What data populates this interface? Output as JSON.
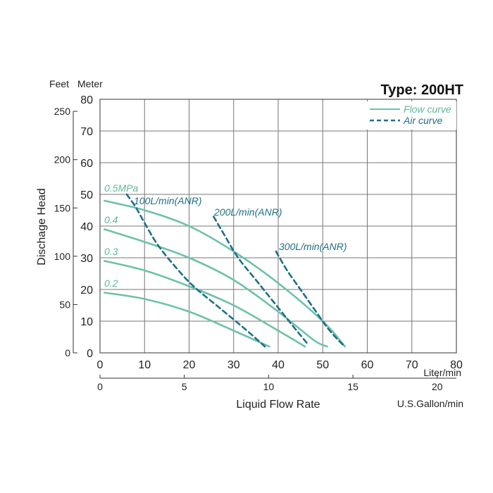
{
  "chart_data": {
    "type": "line",
    "title": "Type: 200HT",
    "ylabel": "Dischage Head",
    "y_units": {
      "left": "Feet",
      "right": "Meter"
    },
    "xlabel": "Liquid Flow Rate",
    "x_unit_primary": "Liter/min",
    "x_unit_secondary": "U.S.Gallon/min",
    "xlim": [
      0,
      80
    ],
    "ylim": [
      0,
      80
    ],
    "x_ticks": [
      "0",
      "10",
      "20",
      "30",
      "40",
      "50",
      "60",
      "70",
      "80"
    ],
    "y_ticks_meter": [
      "0",
      "10",
      "20",
      "30",
      "40",
      "50",
      "60",
      "70",
      "80"
    ],
    "y_ticks_feet": [
      "0",
      "50",
      "100",
      "150",
      "200",
      "250"
    ],
    "x_ticks_gallon": [
      "0",
      "5",
      "10",
      "15",
      "20"
    ],
    "grid": true,
    "legend_placement": "top-right",
    "legend": [
      {
        "label": "Flow curve",
        "style": "solid",
        "color": "#6cc2a8"
      },
      {
        "label": "Air curve",
        "style": "dashed",
        "color": "#1f6f8b"
      }
    ],
    "colors": {
      "flow": "#6cc2a8",
      "air": "#1f6f8b",
      "flow_label": "#5cb89c",
      "air_label": "#1f6f8b"
    },
    "series": [
      {
        "name": "0.5MPa",
        "kind": "flow",
        "x": [
          1,
          10,
          20,
          30,
          40,
          50,
          55
        ],
        "y": [
          48,
          45,
          40,
          32,
          22,
          10,
          2
        ]
      },
      {
        "name": "0.4",
        "kind": "flow",
        "x": [
          1,
          10,
          20,
          30,
          40,
          48,
          51
        ],
        "y": [
          39,
          35,
          30,
          23,
          13,
          4,
          2
        ]
      },
      {
        "name": "0.3",
        "kind": "flow",
        "x": [
          1,
          10,
          20,
          30,
          40,
          46
        ],
        "y": [
          29,
          26,
          21,
          15,
          7,
          2
        ]
      },
      {
        "name": "0.2",
        "kind": "flow",
        "x": [
          1,
          10,
          20,
          30,
          38
        ],
        "y": [
          19,
          17,
          13,
          7,
          2
        ]
      },
      {
        "name": "100L/min(ANR)",
        "kind": "air",
        "x": [
          6,
          8,
          10,
          13,
          17,
          21,
          27,
          33,
          37
        ],
        "y": [
          50,
          46,
          41,
          34,
          27,
          21,
          14,
          7,
          2
        ]
      },
      {
        "name": "200L/min(ANR)",
        "kind": "air",
        "x": [
          25.5,
          28,
          31,
          35,
          39,
          43,
          46.5
        ],
        "y": [
          43,
          37,
          30,
          23,
          16,
          9,
          3
        ]
      },
      {
        "name": "300L/min(ANR)",
        "kind": "air",
        "x": [
          39.5,
          42,
          45,
          48,
          51,
          53.5,
          55
        ],
        "y": [
          32,
          26,
          20,
          14,
          8,
          4,
          2
        ]
      }
    ]
  }
}
